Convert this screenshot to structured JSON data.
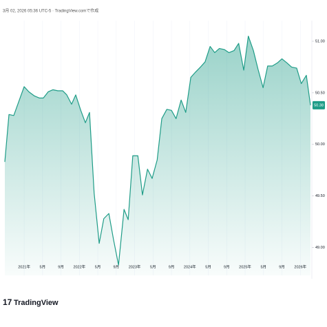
{
  "header": "3月 02, 2026 05:36 UTC-5 · TradingView.comで作成",
  "brand": "TradingView",
  "chart_data": {
    "type": "area",
    "color": "#1e9c87",
    "x": [
      -4.2,
      -3.3,
      -2.26,
      -1.21,
      0.0,
      1.03,
      2.23,
      3.28,
      4.17,
      5.22,
      6.27,
      7.31,
      8.36,
      9.26,
      10.3,
      11.2,
      12.3,
      13.3,
      14.2,
      15.2,
      16.3,
      17.3,
      18.4,
      19.4,
      20.5,
      21.7,
      22.6,
      23.6,
      24.7,
      25.7,
      26.8,
      27.8,
      28.9,
      29.9,
      31.0,
      32.0,
      33.0,
      34.1,
      35.1,
      36.2,
      37.2,
      38.3,
      39.3,
      40.4,
      41.4,
      42.4,
      43.5,
      44.5,
      45.6,
      46.6,
      47.7,
      48.7,
      49.8,
      50.8,
      51.9,
      52.9,
      53.9,
      55.0,
      56.0,
      57.1,
      58.1,
      59.2,
      60.2,
      61.3,
      62.2
    ],
    "values": [
      49.83,
      50.29,
      50.28,
      50.41,
      50.56,
      50.51,
      50.47,
      50.45,
      50.45,
      50.51,
      50.53,
      50.52,
      50.52,
      50.48,
      50.39,
      50.48,
      50.33,
      50.21,
      50.31,
      49.53,
      49.04,
      49.28,
      49.33,
      49.08,
      48.83,
      49.37,
      49.27,
      49.89,
      49.89,
      49.51,
      49.76,
      49.67,
      49.85,
      50.25,
      50.34,
      50.33,
      50.25,
      50.43,
      50.31,
      50.65,
      50.7,
      50.75,
      50.8,
      50.95,
      50.89,
      50.93,
      50.92,
      50.89,
      50.91,
      50.98,
      50.72,
      51.05,
      50.91,
      50.73,
      50.55,
      50.76,
      50.76,
      50.79,
      50.83,
      50.79,
      50.75,
      50.74,
      50.59,
      50.67,
      50.38
    ],
    "xlim": [
      -4.2,
      62.2
    ],
    "ylim": [
      48.73,
      51.2
    ],
    "xticks": [
      {
        "value": 0,
        "label": "2021年"
      },
      {
        "value": 4,
        "label": "5月"
      },
      {
        "value": 8,
        "label": "9月"
      },
      {
        "value": 12,
        "label": "2022年"
      },
      {
        "value": 16,
        "label": "5月"
      },
      {
        "value": 20,
        "label": "9月"
      },
      {
        "value": 24,
        "label": "2023年"
      },
      {
        "value": 28,
        "label": "5月"
      },
      {
        "value": 32,
        "label": "9月"
      },
      {
        "value": 36,
        "label": "2024年"
      },
      {
        "value": 40,
        "label": "5月"
      },
      {
        "value": 44,
        "label": "9月"
      },
      {
        "value": 48,
        "label": "2025年"
      },
      {
        "value": 52,
        "label": "5月"
      },
      {
        "value": 56,
        "label": "9月"
      },
      {
        "value": 60,
        "label": "2026年"
      }
    ],
    "yticks": [
      {
        "value": 49,
        "label": "49.00"
      },
      {
        "value": 49.5,
        "label": "49.50"
      },
      {
        "value": 50,
        "label": "50.00"
      },
      {
        "value": 50.5,
        "label": "50.50"
      },
      {
        "value": 51,
        "label": "51.00"
      }
    ],
    "last_price": {
      "value": 50.38,
      "label": "50.38"
    }
  }
}
